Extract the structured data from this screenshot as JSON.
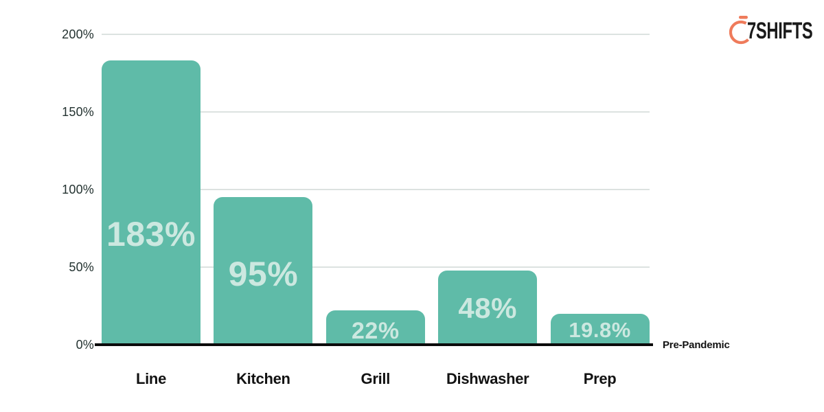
{
  "logo": {
    "text": "7SHIFTS",
    "icon": "stopwatch",
    "colors": {
      "icon": "#EF7B5B",
      "text": "#1A1A1A"
    }
  },
  "chart_data": {
    "type": "bar",
    "categories": [
      "Line",
      "Kitchen",
      "Grill",
      "Dishwasher",
      "Prep"
    ],
    "values": [
      183,
      95,
      22,
      48,
      19.8
    ],
    "value_labels": [
      "183%",
      "95%",
      "22%",
      "48%",
      "19.8%"
    ],
    "title": "",
    "xlabel": "",
    "ylabel": "",
    "ylim": [
      0,
      200
    ],
    "yticks": [
      0,
      50,
      100,
      150,
      200
    ],
    "ytick_labels": [
      "0%",
      "50%",
      "100%",
      "150%",
      "200%"
    ],
    "grid": true,
    "legend": false,
    "baseline_label": "Pre-Pandemic",
    "colors": {
      "bar": "#5FBBA8",
      "bar_value_label": "#CCE8E0",
      "gridline": "#DCE2E0",
      "axis_line": "#0B0B0B",
      "tick_text": "#233230",
      "category_text": "#121212",
      "baseline_text": "#121212"
    },
    "value_label_font_px": [
      50,
      50,
      34,
      42,
      31
    ],
    "value_label_pos_frac": [
      0.39,
      0.48,
      0.41,
      0.49,
      0.49
    ]
  }
}
